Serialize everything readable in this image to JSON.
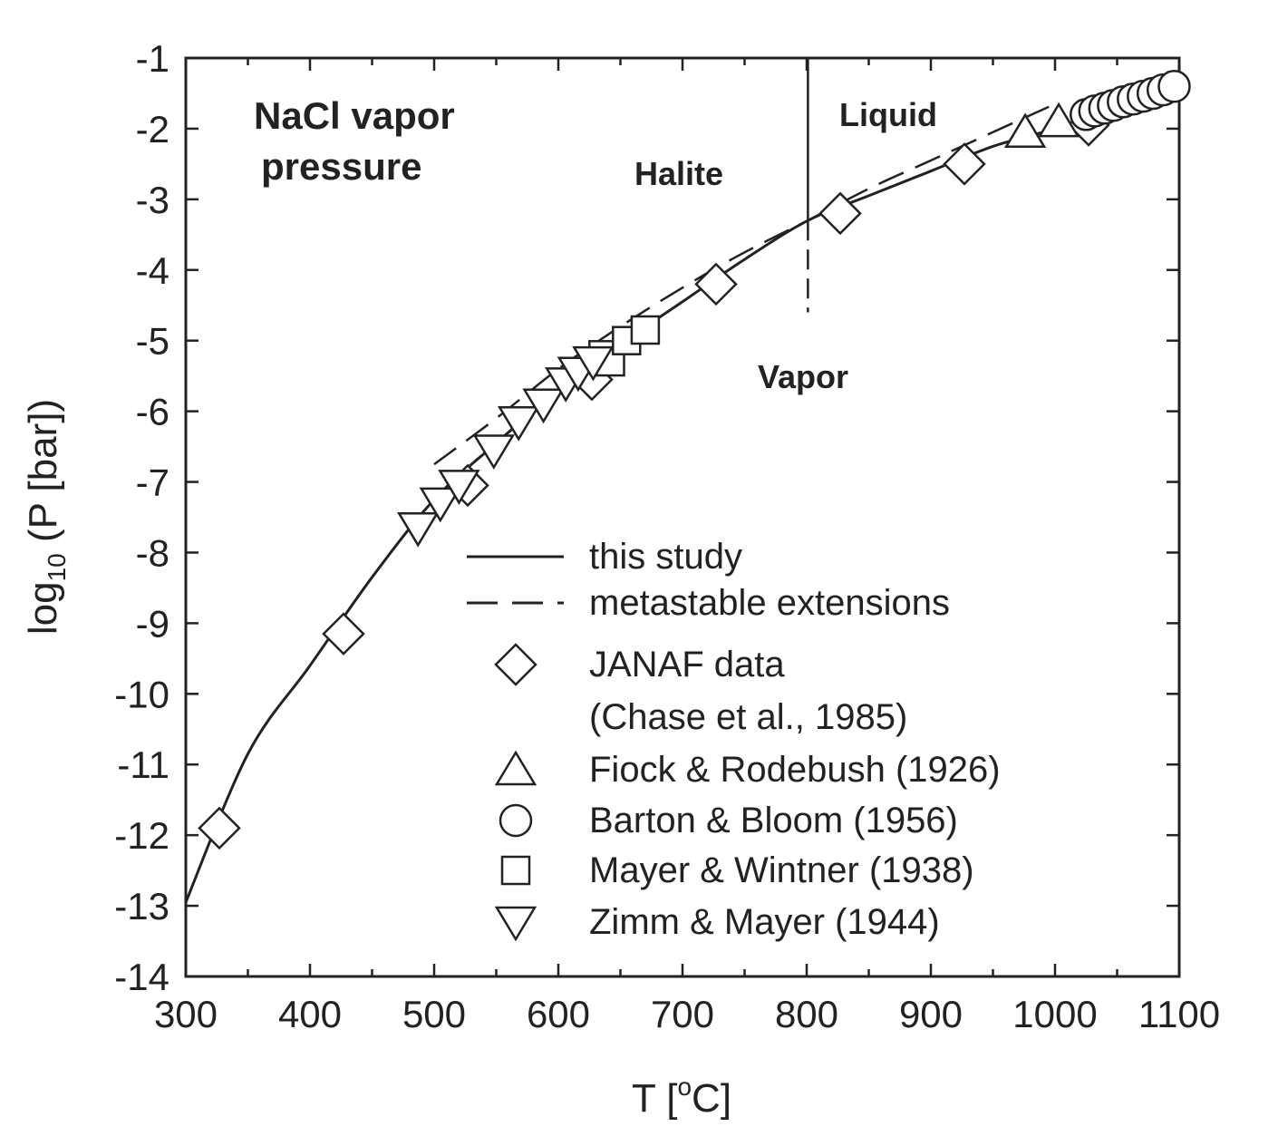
{
  "chart_data": {
    "type": "scatter",
    "xlabel": {
      "main": "T [",
      "sup": "o",
      "rest": "C]"
    },
    "ylabel": {
      "main": "log",
      "sub": "10",
      "rest": " (P [bar])"
    },
    "xlim": [
      300,
      1100
    ],
    "ylim": [
      -14,
      -1
    ],
    "xticks": [
      300,
      400,
      500,
      600,
      700,
      800,
      900,
      1000,
      1100
    ],
    "yticks": [
      -1,
      -2,
      -3,
      -4,
      -5,
      -6,
      -7,
      -8,
      -9,
      -10,
      -11,
      -12,
      -13,
      -14
    ],
    "x_minor_step": 50,
    "annotations": {
      "title_line1": "NaCl vapor",
      "title_line2": "pressure",
      "halite": "Halite",
      "liquid": "Liquid",
      "vapor": "Vapor"
    },
    "phase_boundary": {
      "x": 801,
      "solid_y_top": -1,
      "solid_y_bottom": -3.3,
      "dashed_y_bottom": -4.6
    },
    "curves": {
      "this_study": {
        "label": "this study",
        "x": [
          300,
          350,
          400,
          450,
          500,
          550,
          600,
          650,
          700,
          750,
          801,
          850,
          900,
          950,
          1000,
          1050,
          1100
        ],
        "y": [
          -12.95,
          -10.85,
          -9.6,
          -8.35,
          -7.25,
          -6.45,
          -5.7,
          -5.05,
          -4.45,
          -3.85,
          -3.3,
          -2.95,
          -2.6,
          -2.25,
          -2.0,
          -1.7,
          -1.4
        ]
      },
      "metastable_halite": {
        "label": "metastable extensions",
        "x": [
          500,
          550,
          600,
          650,
          700,
          750,
          801
        ],
        "y": [
          -6.75,
          -6.1,
          -5.4,
          -4.8,
          -4.25,
          -3.75,
          -3.3
        ]
      },
      "metastable_liquid": {
        "x": [
          801,
          850,
          900,
          950,
          1000
        ],
        "y": [
          -3.3,
          -2.85,
          -2.45,
          -2.05,
          -1.65
        ]
      }
    },
    "series": [
      {
        "name": "JANAF data",
        "name_line2": "(Chase et al., 1985)",
        "marker": "diamond",
        "x": [
          327,
          427,
          527,
          627,
          727,
          827,
          927,
          1027
        ],
        "y": [
          -11.9,
          -9.15,
          -7.05,
          -5.55,
          -4.2,
          -3.2,
          -2.5,
          -1.95
        ]
      },
      {
        "name": "Fiock & Rodebush (1926)",
        "marker": "triangle-up",
        "x": [
          976,
          1003
        ],
        "y": [
          -2.05,
          -1.9
        ]
      },
      {
        "name": "Barton & Bloom (1956)",
        "marker": "circle",
        "x": [
          1025,
          1032,
          1040,
          1047,
          1055,
          1063,
          1071,
          1079,
          1087,
          1096
        ],
        "y": [
          -1.8,
          -1.75,
          -1.71,
          -1.67,
          -1.62,
          -1.58,
          -1.54,
          -1.5,
          -1.45,
          -1.4
        ]
      },
      {
        "name": "Mayer & Wintner (1938)",
        "marker": "square",
        "x": [
          636,
          642,
          655,
          670
        ],
        "y": [
          -5.2,
          -5.3,
          -5.0,
          -4.85
        ]
      },
      {
        "name": "Zimm & Mayer (1944)",
        "marker": "triangle-down",
        "x": [
          487,
          505,
          520,
          548,
          568,
          588,
          606,
          616,
          628
        ],
        "y": [
          -7.65,
          -7.3,
          -7.05,
          -6.55,
          -6.15,
          -5.9,
          -5.6,
          -5.45,
          -5.3
        ]
      }
    ],
    "legend_position": "bottom-right"
  }
}
